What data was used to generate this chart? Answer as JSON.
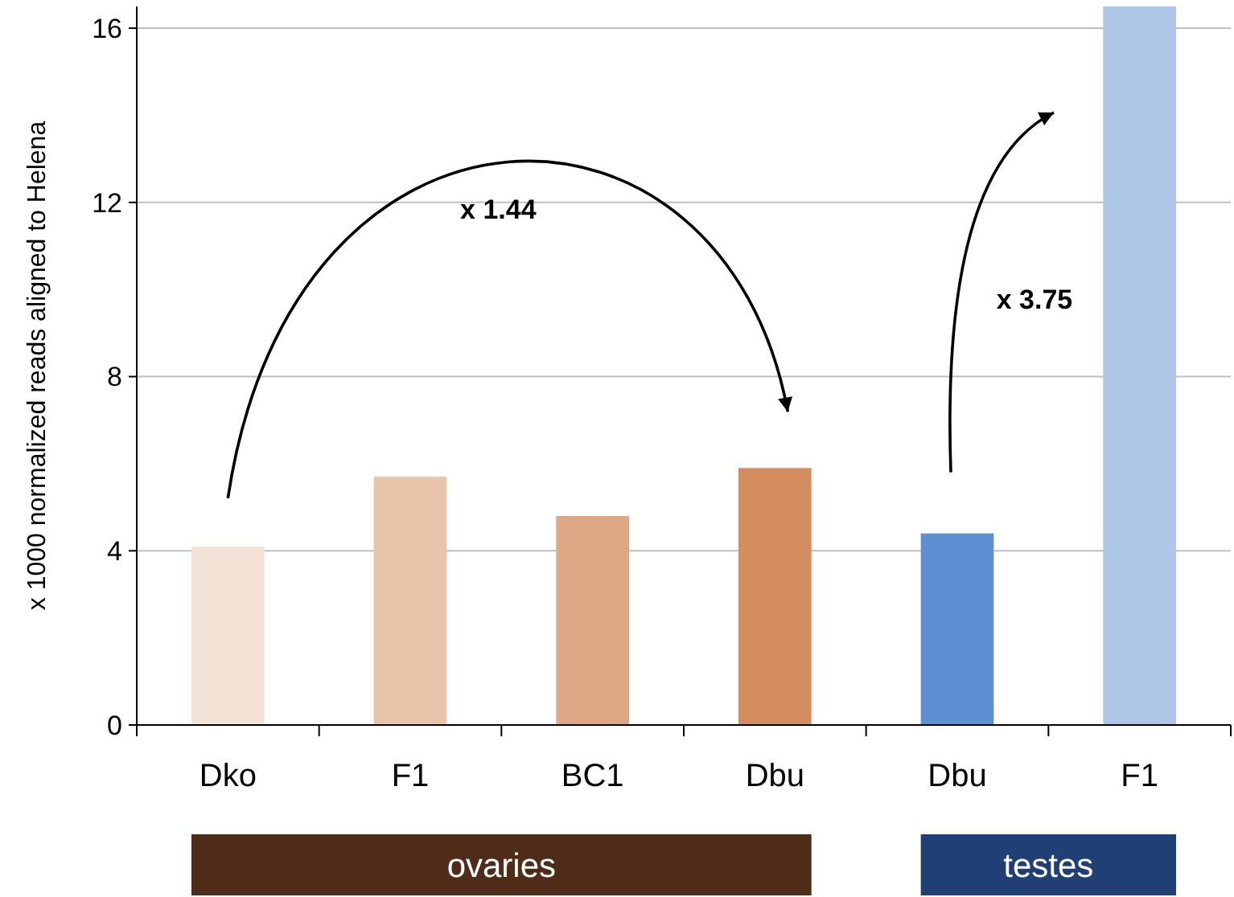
{
  "chart_data": {
    "type": "bar",
    "ylabel": "x 1000 normalized reads aligned to Helena",
    "categories": [
      "Dko",
      "F1",
      "BC1",
      "Dbu",
      "Dbu",
      "F1"
    ],
    "values": [
      4.1,
      5.7,
      4.8,
      5.9,
      4.4,
      16.5
    ],
    "colors": [
      "#f3e3d7",
      "#e8c4aa",
      "#dfa884",
      "#d48d5f",
      "#5f8fd3",
      "#aec6e8"
    ],
    "ylim": [
      0,
      16.5
    ],
    "yticks": [
      0,
      4,
      8,
      12,
      16
    ],
    "grid": "y",
    "annotations": [
      "x 1.44",
      "x 3.75",
      "ovaries",
      "testes"
    ]
  }
}
